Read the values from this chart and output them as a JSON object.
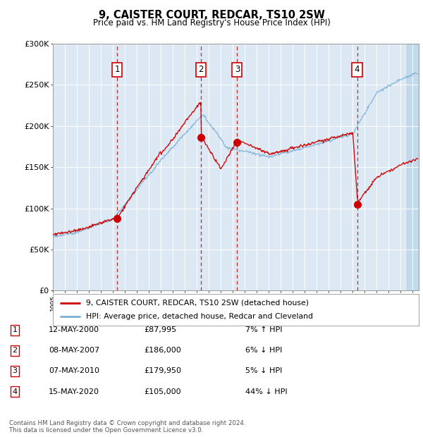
{
  "title": "9, CAISTER COURT, REDCAR, TS10 2SW",
  "subtitle": "Price paid vs. HM Land Registry's House Price Index (HPI)",
  "ylabel_ticks": [
    "£0",
    "£50K",
    "£100K",
    "£150K",
    "£200K",
    "£250K",
    "£300K"
  ],
  "ytick_values": [
    0,
    50000,
    100000,
    150000,
    200000,
    250000,
    300000
  ],
  "ylim": [
    0,
    300000
  ],
  "xlim_start": 1995.0,
  "xlim_end": 2025.5,
  "bg_color": "#dce9f5",
  "legend_label_red": "9, CAISTER COURT, REDCAR, TS10 2SW (detached house)",
  "legend_label_blue": "HPI: Average price, detached house, Redcar and Cleveland",
  "transactions": [
    {
      "num": 1,
      "date": 2000.36,
      "price": 87995,
      "label": "12-MAY-2000",
      "price_str": "£87,995",
      "change": "7% ↑ HPI"
    },
    {
      "num": 2,
      "date": 2007.36,
      "price": 186000,
      "label": "08-MAY-2007",
      "price_str": "£186,000",
      "change": "6% ↓ HPI"
    },
    {
      "num": 3,
      "date": 2010.36,
      "price": 179950,
      "label": "07-MAY-2010",
      "price_str": "£179,950",
      "change": "5% ↓ HPI"
    },
    {
      "num": 4,
      "date": 2020.36,
      "price": 105000,
      "label": "15-MAY-2020",
      "price_str": "£105,000",
      "change": "44% ↓ HPI"
    }
  ],
  "footer": "Contains HM Land Registry data © Crown copyright and database right 2024.\nThis data is licensed under the Open Government Licence v3.0.",
  "red_line_color": "#cc0000",
  "blue_line_color": "#7bafd4"
}
